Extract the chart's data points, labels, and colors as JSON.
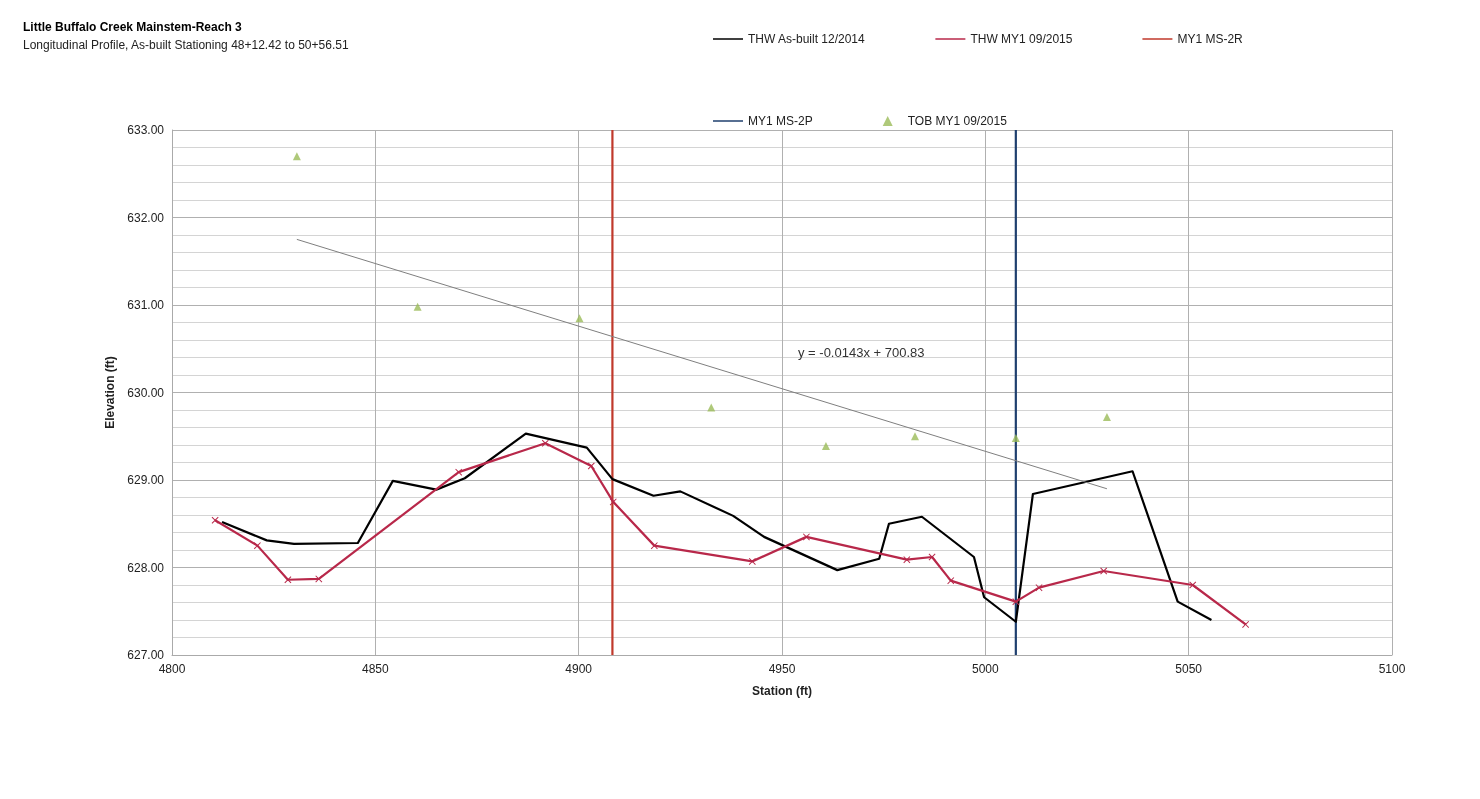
{
  "chart_data": {
    "type": "line",
    "title": "Little Buffalo Creek Mainstem-Reach 3",
    "subtitle": "Longitudinal Profile, As-built Stationing 48+12.42 to 50+56.51",
    "xlabel": "Station (ft)",
    "ylabel": "Elevation (ft)",
    "xlim": [
      4800,
      5100
    ],
    "xticks": [
      4800,
      4850,
      4900,
      4950,
      5000,
      5050,
      5100
    ],
    "ylim": [
      627,
      633
    ],
    "yticks": [
      {
        "value": 627,
        "label": "627.00"
      },
      {
        "value": 628,
        "label": "628.00"
      },
      {
        "value": 629,
        "label": "629.00"
      },
      {
        "value": 630,
        "label": "630.00"
      },
      {
        "value": 631,
        "label": "631.00"
      },
      {
        "value": 632,
        "label": "632.00"
      },
      {
        "value": 633,
        "label": "633.00"
      }
    ],
    "grid": true,
    "legend": "top right",
    "annotations": [
      "y = -0.0143x + 700.83"
    ],
    "series": [
      {
        "name": "THW As-built 12/2014",
        "color": "#000000",
        "marker": "none",
        "x": [
          4812.3,
          4823.3,
          4830,
          4845.7,
          4854.3,
          4865,
          4872,
          4887,
          4902,
          4908.3,
          4918.4,
          4925,
          4938,
          4945.6,
          4963.6,
          4973.9,
          4976.3,
          4984.4,
          4997.2,
          4999.7,
          5007.5,
          5011.7,
          5036.2,
          5047.3,
          5055.6
        ],
        "values": [
          628.52,
          628.31,
          628.27,
          628.28,
          628.99,
          628.89,
          629.02,
          629.53,
          629.37,
          629.01,
          628.82,
          628.87,
          628.59,
          628.35,
          627.97,
          628.1,
          628.5,
          628.58,
          628.12,
          627.66,
          627.38,
          628.84,
          629.1,
          627.61,
          627.4
        ]
      },
      {
        "name": "THW MY1 09/2015",
        "color": "#b8284a",
        "marker": "cross",
        "x": [
          4810.6,
          4821,
          4828.5,
          4836.1,
          4870.5,
          4891.8,
          4903.1,
          4908.5,
          4918.6,
          4942.7,
          4956,
          4980.7,
          4986.9,
          4991.5,
          5007.5,
          5013.2,
          5029.1,
          5051,
          5064
        ],
        "values": [
          628.54,
          628.25,
          627.86,
          627.87,
          629.09,
          629.42,
          629.16,
          628.75,
          628.25,
          628.07,
          628.35,
          628.09,
          628.12,
          627.85,
          627.61,
          627.77,
          627.96,
          627.8,
          627.35
        ]
      },
      {
        "name": "MY1 MS-2R",
        "color": "#c0392b",
        "marker": "none",
        "x": [
          4908.3,
          4908.3
        ],
        "values": [
          627,
          633
        ]
      },
      {
        "name": "MY1 MS-2P",
        "color": "#1f3f6e",
        "marker": "none",
        "x": [
          5007.5,
          5007.5
        ],
        "values": [
          627,
          633
        ]
      },
      {
        "name": "TOB MY1 09/2015",
        "type": "scatter",
        "color": "#9bbb59",
        "marker": "triangle",
        "x": [
          4830.7,
          4860.4,
          4900.2,
          4932.6,
          4960.8,
          4982.7,
          5007.5,
          5029.9
        ],
        "values": [
          632.7,
          630.98,
          630.85,
          629.83,
          629.39,
          629.5,
          629.48,
          629.72
        ]
      },
      {
        "type": "line",
        "color": "#7f7f7f",
        "marker": "none",
        "x": [
          4830.7,
          5029.9
        ],
        "values": [
          631.75,
          628.9
        ]
      }
    ]
  }
}
